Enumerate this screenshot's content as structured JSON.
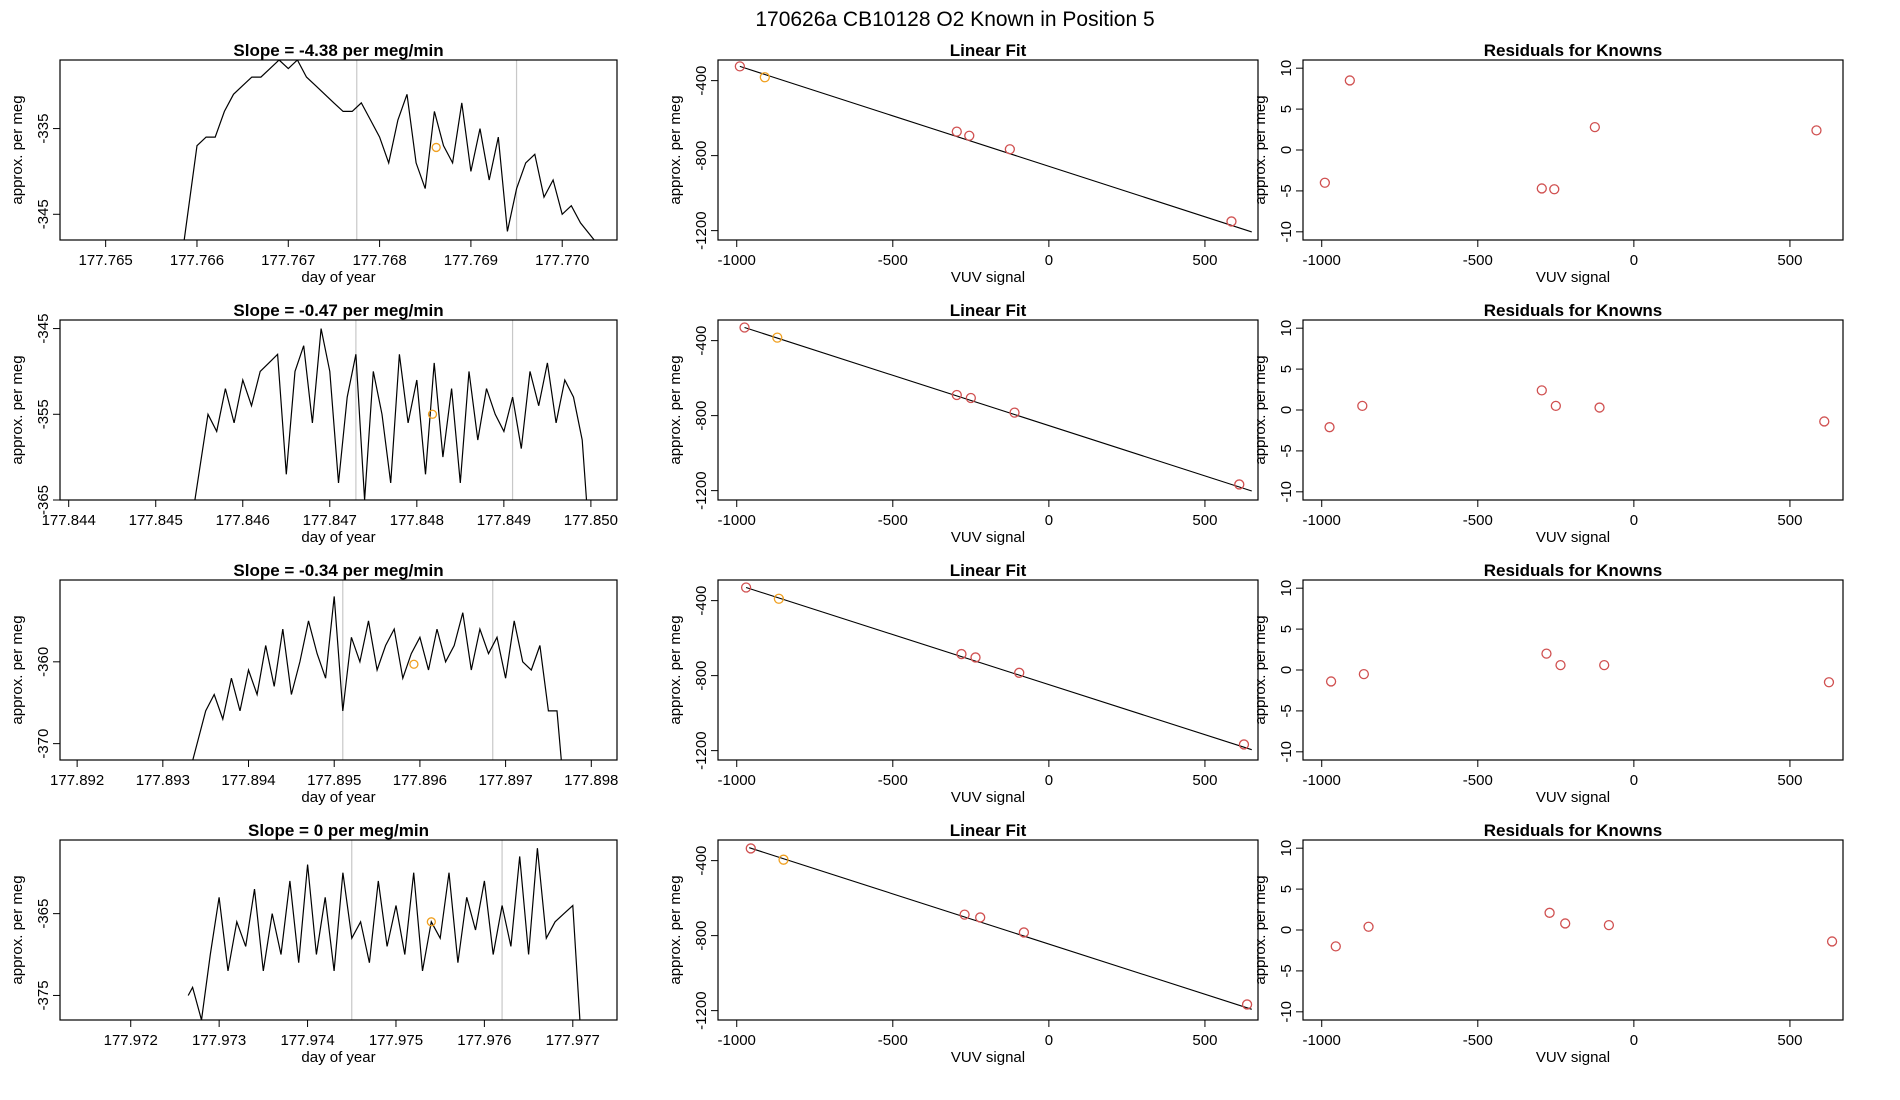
{
  "figure": {
    "title": "170626a      CB10128    O2 Known in Position  5",
    "colors": {
      "line": "#000000",
      "point": "#d05050",
      "highlight": "#f0a020",
      "vline": "#c8c8c8"
    }
  },
  "chart_data": [
    {
      "type": "line",
      "title": "Slope =  -4.38  per meg/min",
      "xlabel": "day of year",
      "ylabel": "approx. per meg",
      "xlim": [
        177.7645,
        177.7706
      ],
      "ylim": [
        -348,
        -327
      ],
      "xticks": [
        "177.765",
        "177.766",
        "177.767",
        "177.768",
        "177.769",
        "177.770"
      ],
      "yticks": [
        "-335",
        "-345"
      ],
      "vlines": [
        177.76775,
        177.7695
      ],
      "highlight": [
        177.76862,
        -337.2
      ],
      "x": [
        177.76586,
        177.766,
        177.7661,
        177.7662,
        177.7663,
        177.7664,
        177.7665,
        177.7666,
        177.7667,
        177.7668,
        177.7669,
        177.767,
        177.7671,
        177.7672,
        177.7673,
        177.7674,
        177.7675,
        177.7676,
        177.7677,
        177.7678,
        177.7679,
        177.768,
        177.7681,
        177.7682,
        177.7683,
        177.7684,
        177.7685,
        177.7686,
        177.7687,
        177.7688,
        177.7689,
        177.769,
        177.7691,
        177.7692,
        177.7693,
        177.7694,
        177.7695,
        177.7696,
        177.7697,
        177.7698,
        177.7699,
        177.77,
        177.7701,
        177.7702,
        177.77035
      ],
      "y": [
        -348,
        -337,
        -336,
        -336,
        -333,
        -331,
        -330,
        -329,
        -329,
        -328,
        -327,
        -328,
        -327,
        -329,
        -330,
        -331,
        -332,
        -333,
        -333,
        -332,
        -334,
        -336,
        -339,
        -334,
        -331,
        -339,
        -342,
        -333,
        -337,
        -339,
        -332,
        -340,
        -335,
        -341,
        -336,
        -347,
        -342,
        -339,
        -338,
        -343,
        -341,
        -345,
        -344,
        -346,
        -348
      ]
    },
    {
      "type": "scatter",
      "title": "Linear Fit",
      "xlabel": "VUV signal",
      "ylabel": "approx. per meg",
      "xlim": [
        -1060,
        670
      ],
      "ylim": [
        -1250,
        -290
      ],
      "xticks": [
        "-1000",
        "-500",
        "0",
        "500"
      ],
      "yticks": [
        "-400",
        "-800",
        "-1200"
      ],
      "fit": [
        [
          -990,
          -324
        ],
        [
          650,
          -1207
        ]
      ],
      "x": [
        -990,
        -910,
        -295,
        -255,
        -125,
        585
      ],
      "y": [
        -324,
        -382,
        -672,
        -694,
        -766,
        -1151
      ],
      "highlight_index": 1
    },
    {
      "type": "scatter",
      "title": "Residuals for Knowns",
      "xlabel": "VUV signal",
      "ylabel": "approx. per meg",
      "xlim": [
        -1060,
        670
      ],
      "ylim": [
        -11,
        11
      ],
      "xticks": [
        "-1000",
        "-500",
        "0",
        "500"
      ],
      "yticks": [
        "10",
        "5",
        "0",
        "-5",
        "-10"
      ],
      "x": [
        -990,
        -910,
        -295,
        -255,
        -125,
        585
      ],
      "y": [
        -4.0,
        8.5,
        -4.7,
        -4.8,
        2.8,
        2.4
      ]
    },
    {
      "type": "line",
      "title": "Slope =  -0.47  per meg/min",
      "xlabel": "day of year",
      "ylabel": "approx. per meg",
      "xlim": [
        177.8439,
        177.8503
      ],
      "ylim": [
        -365,
        -344
      ],
      "xticks": [
        "177.844",
        "177.845",
        "177.846",
        "177.847",
        "177.848",
        "177.849",
        "177.850"
      ],
      "yticks": [
        "-345",
        "-355",
        "-365"
      ],
      "vlines": [
        177.8473,
        177.8491
      ],
      "highlight": [
        177.84818,
        -355.0
      ],
      "x": [
        177.84545,
        177.8456,
        177.8457,
        177.8458,
        177.8459,
        177.846,
        177.8461,
        177.8462,
        177.8463,
        177.8464,
        177.8465,
        177.8466,
        177.8467,
        177.8468,
        177.8469,
        177.847,
        177.8471,
        177.8472,
        177.8473,
        177.8474,
        177.8475,
        177.8476,
        177.8477,
        177.8478,
        177.8479,
        177.848,
        177.8481,
        177.8482,
        177.8483,
        177.8484,
        177.8485,
        177.8486,
        177.8487,
        177.8488,
        177.8489,
        177.849,
        177.8491,
        177.8492,
        177.8493,
        177.8494,
        177.8495,
        177.8496,
        177.8497,
        177.8498,
        177.8499,
        177.84995
      ],
      "y": [
        -365,
        -355,
        -357,
        -352,
        -356,
        -351,
        -354,
        -350,
        -349,
        -348,
        -362,
        -350,
        -347,
        -356,
        -345,
        -350,
        -363,
        -353,
        -348,
        -365,
        -350,
        -355,
        -363,
        -348,
        -356,
        -351,
        -362,
        -349,
        -360,
        -352,
        -363,
        -350,
        -358,
        -352,
        -355,
        -357,
        -353,
        -359,
        -350,
        -354,
        -349,
        -356,
        -351,
        -353,
        -358,
        -365
      ]
    },
    {
      "type": "scatter",
      "title": "Linear Fit",
      "xlabel": "VUV signal",
      "ylabel": "approx. per meg",
      "xlim": [
        -1060,
        670
      ],
      "ylim": [
        -1250,
        -290
      ],
      "xticks": [
        "-1000",
        "-500",
        "0",
        "500"
      ],
      "yticks": [
        "-400",
        "-800",
        "-1200"
      ],
      "fit": [
        [
          -975,
          -330
        ],
        [
          650,
          -1202
        ]
      ],
      "x": [
        -975,
        -870,
        -295,
        -250,
        -110,
        610
      ],
      "y": [
        -330,
        -384,
        -690,
        -706,
        -784,
        -1167
      ],
      "highlight_index": 1
    },
    {
      "type": "scatter",
      "title": "Residuals for Knowns",
      "xlabel": "VUV signal",
      "ylabel": "approx. per meg",
      "xlim": [
        -1060,
        670
      ],
      "ylim": [
        -11,
        11
      ],
      "xticks": [
        "-1000",
        "-500",
        "0",
        "500"
      ],
      "yticks": [
        "10",
        "5",
        "0",
        "-5",
        "-10"
      ],
      "x": [
        -975,
        -870,
        -295,
        -250,
        -110,
        610
      ],
      "y": [
        -2.1,
        0.5,
        2.4,
        0.5,
        0.3,
        -1.4
      ]
    },
    {
      "type": "line",
      "title": "Slope =  -0.34  per meg/min",
      "xlabel": "day of year",
      "ylabel": "approx. per meg",
      "xlim": [
        177.8918,
        177.8983
      ],
      "ylim": [
        -372,
        -350
      ],
      "xticks": [
        "177.892",
        "177.893",
        "177.894",
        "177.895",
        "177.896",
        "177.897",
        "177.898"
      ],
      "yticks": [
        "-360",
        "-370"
      ],
      "vlines": [
        177.8951,
        177.89685
      ],
      "highlight": [
        177.89593,
        -360.3
      ],
      "x": [
        177.89335,
        177.8935,
        177.8936,
        177.8937,
        177.8938,
        177.8939,
        177.894,
        177.8941,
        177.8942,
        177.8943,
        177.8944,
        177.8945,
        177.8946,
        177.8947,
        177.8948,
        177.8949,
        177.895,
        177.8951,
        177.8952,
        177.8953,
        177.8954,
        177.8955,
        177.8956,
        177.8957,
        177.8958,
        177.8959,
        177.896,
        177.8961,
        177.8962,
        177.8963,
        177.8964,
        177.8965,
        177.8966,
        177.8967,
        177.8968,
        177.8969,
        177.897,
        177.8971,
        177.8972,
        177.8973,
        177.8974,
        177.8975,
        177.8976,
        177.89765
      ],
      "y": [
        -372,
        -366,
        -364,
        -367,
        -362,
        -366,
        -361,
        -364,
        -358,
        -363,
        -356,
        -364,
        -360,
        -355,
        -359,
        -362,
        -352,
        -366,
        -357,
        -360,
        -355,
        -361,
        -358,
        -356,
        -362,
        -359,
        -357,
        -361,
        -356,
        -360,
        -358,
        -354,
        -361,
        -356,
        -359,
        -357,
        -362,
        -355,
        -360,
        -361,
        -358,
        -366,
        -366,
        -372
      ]
    },
    {
      "type": "scatter",
      "title": "Linear Fit",
      "xlabel": "VUV signal",
      "ylabel": "approx. per meg",
      "xlim": [
        -1060,
        670
      ],
      "ylim": [
        -1250,
        -290
      ],
      "xticks": [
        "-1000",
        "-500",
        "0",
        "500"
      ],
      "yticks": [
        "-400",
        "-800",
        "-1200"
      ],
      "fit": [
        [
          -970,
          -330
        ],
        [
          650,
          -1195
        ]
      ],
      "x": [
        -970,
        -865,
        -280,
        -235,
        -95,
        625
      ],
      "y": [
        -330,
        -390,
        -685,
        -703,
        -785,
        -1167
      ],
      "highlight_index": 1
    },
    {
      "type": "scatter",
      "title": "Residuals for Knowns",
      "xlabel": "VUV signal",
      "ylabel": "approx. per meg",
      "xlim": [
        -1060,
        670
      ],
      "ylim": [
        -11,
        11
      ],
      "xticks": [
        "-1000",
        "-500",
        "0",
        "500"
      ],
      "yticks": [
        "10",
        "5",
        "0",
        "-5",
        "-10"
      ],
      "x": [
        -970,
        -865,
        -280,
        -235,
        -95,
        625
      ],
      "y": [
        -1.4,
        -0.5,
        2.0,
        0.6,
        0.6,
        -1.5
      ]
    },
    {
      "type": "line",
      "title": "Slope =  0  per meg/min",
      "xlabel": "day of year",
      "ylabel": "approx. per meg",
      "xlim": [
        177.9712,
        177.9775
      ],
      "ylim": [
        -378,
        -356
      ],
      "xticks": [
        "177.972",
        "177.973",
        "177.974",
        "177.975",
        "177.976",
        "177.977"
      ],
      "yticks": [
        "-365",
        "-375"
      ],
      "vlines": [
        177.9745,
        177.9762
      ],
      "highlight": [
        177.9754,
        -366.0
      ],
      "x": [
        177.97265,
        177.9727,
        177.9728,
        177.9729,
        177.973,
        177.9731,
        177.9732,
        177.9733,
        177.9734,
        177.9735,
        177.9736,
        177.9737,
        177.9738,
        177.9739,
        177.974,
        177.9741,
        177.9742,
        177.9743,
        177.9744,
        177.9745,
        177.9746,
        177.9747,
        177.9748,
        177.9749,
        177.975,
        177.9751,
        177.9752,
        177.9753,
        177.9754,
        177.9755,
        177.9756,
        177.9757,
        177.9758,
        177.9759,
        177.976,
        177.9761,
        177.9762,
        177.9763,
        177.9764,
        177.9765,
        177.9766,
        177.9767,
        177.9768,
        177.9769,
        177.977,
        177.97708
      ],
      "y": [
        -375,
        -374,
        -378,
        -370,
        -363,
        -372,
        -366,
        -369,
        -362,
        -372,
        -365,
        -370,
        -361,
        -371,
        -359,
        -370,
        -363,
        -372,
        -360,
        -368,
        -366,
        -371,
        -361,
        -369,
        -364,
        -370,
        -360,
        -372,
        -366,
        -368,
        -360,
        -371,
        -363,
        -367,
        -361,
        -370,
        -364,
        -369,
        -358,
        -370,
        -357,
        -368,
        -366,
        -365,
        -364,
        -378
      ]
    },
    {
      "type": "scatter",
      "title": "Linear Fit",
      "xlabel": "VUV signal",
      "ylabel": "approx. per meg",
      "xlim": [
        -1060,
        670
      ],
      "ylim": [
        -1250,
        -290
      ],
      "xticks": [
        "-1000",
        "-500",
        "0",
        "500"
      ],
      "yticks": [
        "-400",
        "-800",
        "-1200"
      ],
      "fit": [
        [
          -960,
          -331
        ],
        [
          650,
          -1193
        ]
      ],
      "x": [
        -955,
        -850,
        -270,
        -220,
        -80,
        635
      ],
      "y": [
        -335,
        -395,
        -688,
        -703,
        -783,
        -1167
      ],
      "highlight_index": 1
    },
    {
      "type": "scatter",
      "title": "Residuals for Knowns",
      "xlabel": "VUV signal",
      "ylabel": "approx. per meg",
      "xlim": [
        -1060,
        670
      ],
      "ylim": [
        -11,
        11
      ],
      "xticks": [
        "-1000",
        "-500",
        "0",
        "500"
      ],
      "yticks": [
        "10",
        "5",
        "0",
        "-5",
        "-10"
      ],
      "x": [
        -955,
        -850,
        -270,
        -220,
        -80,
        635
      ],
      "y": [
        -2.0,
        0.4,
        2.1,
        0.8,
        0.6,
        -1.4
      ]
    }
  ]
}
